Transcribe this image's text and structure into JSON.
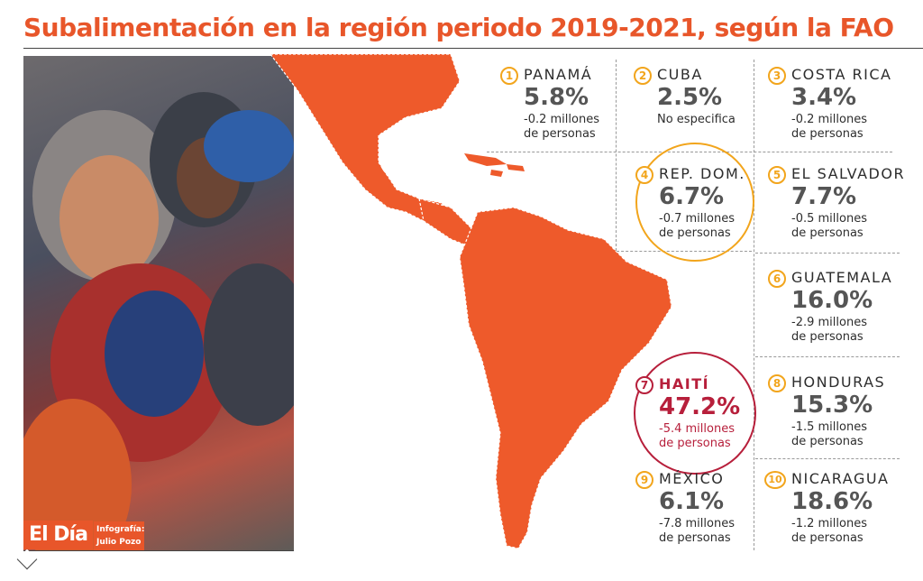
{
  "title": "Subalimentación en la región periodo 2019-2021, según la FAO",
  "logo": "El Día",
  "credit_label": "Infografía:",
  "credit_name": "Julio Pozo",
  "colors": {
    "accent": "#e8562a",
    "number_ring": "#f2a51c",
    "highlight_red": "#b71f3b",
    "map_fill": "#ee5a2b"
  },
  "entries": [
    {
      "n": "1",
      "country": "PANAMÁ",
      "pct": "5.8%",
      "note1": "-0.2 millones",
      "note2": "de personas"
    },
    {
      "n": "2",
      "country": "CUBA",
      "pct": "2.5%",
      "note1": "No especifica",
      "note2": ""
    },
    {
      "n": "3",
      "country": "COSTA RICA",
      "pct": "3.4%",
      "note1": "-0.2 millones",
      "note2": "de personas"
    },
    {
      "n": "4",
      "country": "REP. DOM.",
      "pct": "6.7%",
      "note1": "-0.7 millones",
      "note2": "de personas"
    },
    {
      "n": "5",
      "country": "EL SALVADOR",
      "pct": "7.7%",
      "note1": "-0.5 millones",
      "note2": "de personas"
    },
    {
      "n": "6",
      "country": "GUATEMALA",
      "pct": "16.0%",
      "note1": "-2.9 millones",
      "note2": "de personas"
    },
    {
      "n": "7",
      "country": "HAITÍ",
      "pct": "47.2%",
      "note1": "-5.4 millones",
      "note2": "de personas"
    },
    {
      "n": "8",
      "country": "HONDURAS",
      "pct": "15.3%",
      "note1": "-1.5 millones",
      "note2": "de personas"
    },
    {
      "n": "9",
      "country": "MÉXICO",
      "pct": "6.1%",
      "note1": "-7.8 millones",
      "note2": "de personas"
    },
    {
      "n": "10",
      "country": "NICARAGUA",
      "pct": "18.6%",
      "note1": "-1.2 millones",
      "note2": "de personas"
    }
  ]
}
